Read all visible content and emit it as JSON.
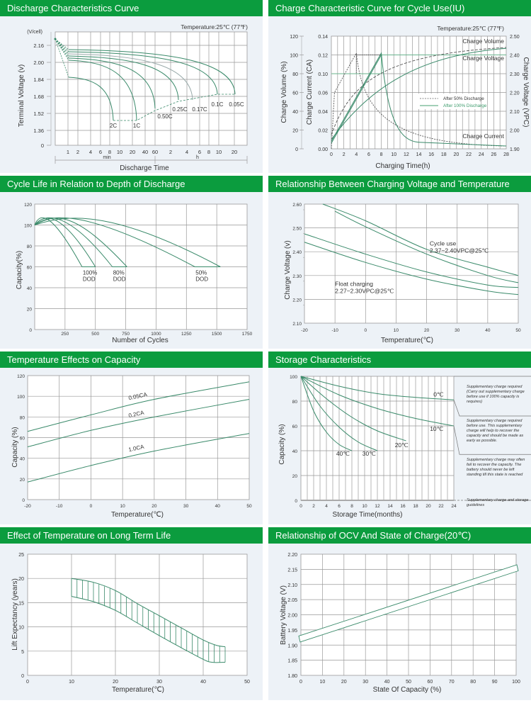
{
  "panels": [
    {
      "title": "Discharge Characteristics Curve"
    },
    {
      "title": "Charge Characteristic Curve for Cycle Use(IU)"
    },
    {
      "title": "Cycle Life in Relation to Depth of Discharge"
    },
    {
      "title": "Relationship Between Charging Voltage and Temperature"
    },
    {
      "title": "Temperature Effects on Capacity"
    },
    {
      "title": "Storage Characteristics"
    },
    {
      "title": "Effect of Temperature on Long Term Life"
    },
    {
      "title": "Relationship of OCV And State of Charge(20℃)"
    }
  ],
  "colors": {
    "header": "#0b9c3e",
    "panel_bg": "#edf2f7",
    "curve": "#3a8a6a",
    "grid": "#999999"
  },
  "chart_data": [
    {
      "type": "line",
      "title": "Discharge Characteristics Curve",
      "annotation": "Temperature:25℃ (77℉)",
      "ylabel": "Terminal  Voltage  (v)",
      "yunit": "(V/cell)",
      "xlabel": "Discharge  Time",
      "yticks": [
        "0",
        "1.36",
        "1.52",
        "1.68",
        "1.84",
        "2.00",
        "2.16"
      ],
      "xticks": [
        "1",
        "2",
        "4",
        "6",
        "8",
        "10",
        "20",
        "40",
        "60",
        "2",
        "4",
        "6",
        "8",
        "10",
        "20"
      ],
      "xgroups": [
        "min",
        "h"
      ],
      "series": [
        {
          "name": "2C",
          "end_time": "9 min",
          "end_voltage": 1.6
        },
        {
          "name": "1C",
          "end_time": "30 min",
          "end_voltage": 1.6
        },
        {
          "name": "0.50C",
          "end_time": "60 min",
          "end_voltage": 1.68
        },
        {
          "name": "0.25C",
          "end_time": "3 h",
          "end_voltage": 1.74
        },
        {
          "name": "0.17C",
          "end_time": "5 h",
          "end_voltage": 1.74
        },
        {
          "name": "0.1C",
          "end_time": "10 h",
          "end_voltage": 1.8
        },
        {
          "name": "0.05C",
          "end_time": "20 h",
          "end_voltage": 1.8
        }
      ]
    },
    {
      "type": "line",
      "title": "Charge Characteristic Curve for Cycle Use(IU)",
      "annotation": "Temperature:25℃ (77℉)",
      "xlabel": "Charging Time(h)",
      "ylabel_left1": "Charge  Volume (%)",
      "ylabel_left2": "Charge  Current (CA)",
      "ylabel_right": "Charge Voltage (VPC)",
      "xticks": [
        "0",
        "2",
        "4",
        "6",
        "8",
        "10",
        "12",
        "14",
        "16",
        "18",
        "20",
        "22",
        "24",
        "26",
        "28"
      ],
      "yticks_volume": [
        "0",
        "20",
        "40",
        "60",
        "80",
        "100",
        "120"
      ],
      "yticks_current": [
        "0.00",
        "0.02",
        "0.04",
        "0.06",
        "0.10",
        "0.12",
        "0.14"
      ],
      "yticks_voltage": [
        "1.90",
        "2.00",
        "2.10",
        "2.20",
        "2.30",
        "2.40",
        "2.50"
      ],
      "curve_labels": [
        "Charge Volume",
        "Charge Voltage",
        "Charge Current"
      ],
      "legend": [
        "After 50% Discharge",
        "After 100% Discharge"
      ],
      "legend_position": "center-right"
    },
    {
      "type": "line",
      "title": "Cycle Life in Relation to Depth of Discharge",
      "xlabel": "Number of Cycles",
      "ylabel": "Capacity(%)",
      "xticks": [
        "250",
        "500",
        "750",
        "1000",
        "1250",
        "1500",
        "1750"
      ],
      "yticks": [
        "0",
        "20",
        "40",
        "60",
        "80",
        "100",
        "120"
      ],
      "series": [
        {
          "name": "100% DOD",
          "label1": "100%",
          "label2": "DOD",
          "end_cycles": [
            390,
            500
          ]
        },
        {
          "name": "80% DOD",
          "label1": "80%",
          "label2": "DOD",
          "end_cycles": [
            640,
            760
          ]
        },
        {
          "name": "50% DOD",
          "label1": "50%",
          "label2": "DOD",
          "end_cycles": [
            1320,
            1530
          ]
        }
      ]
    },
    {
      "type": "line",
      "title": "Relationship Between Charging Voltage and Temperature",
      "xlabel": "Temperature(℃)",
      "ylabel": "Charge Voltage  (v)",
      "xticks": [
        "-20",
        "-10",
        "0",
        "10",
        "20",
        "30",
        "40",
        "50"
      ],
      "yticks": [
        "2.10",
        "2.20",
        "2.30",
        "2.40",
        "2.50",
        "2.60"
      ],
      "bands": [
        {
          "name": "Cycle use",
          "label1": "Cycle use",
          "label2": "2.37~2.40VPC@25℃",
          "upper": [
            [
              -14,
              2.6
            ],
            [
              0,
              2.53
            ],
            [
              20,
              2.41
            ],
            [
              40,
              2.335
            ],
            [
              50,
              2.3
            ]
          ],
          "lower": [
            [
              -10,
              2.57
            ],
            [
              0,
              2.505
            ],
            [
              20,
              2.39
            ],
            [
              40,
              2.3
            ],
            [
              50,
              2.27
            ]
          ]
        },
        {
          "name": "Float charging",
          "label1": "Float charging",
          "label2": "2.27~2.30VPC@25℃",
          "upper": [
            [
              -20,
              2.475
            ],
            [
              0,
              2.39
            ],
            [
              20,
              2.315
            ],
            [
              40,
              2.26
            ],
            [
              50,
              2.25
            ]
          ],
          "lower": [
            [
              -20,
              2.44
            ],
            [
              0,
              2.355
            ],
            [
              20,
              2.285
            ],
            [
              40,
              2.235
            ],
            [
              50,
              2.22
            ]
          ]
        }
      ]
    },
    {
      "type": "line",
      "title": "Temperature Effects on Capacity",
      "xlabel": "Temperature(℃)",
      "ylabel": "Capacity (%)",
      "xticks": [
        "-20",
        "-10",
        "0",
        "10",
        "20",
        "30",
        "40",
        "50"
      ],
      "yticks": [
        "0",
        "20",
        "40",
        "60",
        "80",
        "100",
        "120"
      ],
      "series": [
        {
          "name": "0.05CA",
          "points": [
            [
              -20,
              66
            ],
            [
              0,
              82
            ],
            [
              20,
              97
            ],
            [
              50,
              114
            ]
          ]
        },
        {
          "name": "0.2CA",
          "points": [
            [
              -20,
              51
            ],
            [
              0,
              67
            ],
            [
              20,
              80
            ],
            [
              50,
              97
            ]
          ]
        },
        {
          "name": "1.0CA",
          "points": [
            [
              -20,
              17
            ],
            [
              0,
              33
            ],
            [
              20,
              47
            ],
            [
              50,
              64
            ]
          ]
        }
      ]
    },
    {
      "type": "line",
      "title": "Storage Characteristics",
      "xlabel": "Storage  Time(months)",
      "ylabel": "Capacity  (%)",
      "xticks": [
        "0",
        "2",
        "4",
        "6",
        "8",
        "10",
        "12",
        "14",
        "16",
        "18",
        "20",
        "22",
        "24"
      ],
      "yticks": [
        "0",
        "20",
        "40",
        "60",
        "80",
        "100"
      ],
      "series": [
        {
          "name": "0℃",
          "points": [
            [
              0,
              100
            ],
            [
              6,
              92
            ],
            [
              12,
              86
            ],
            [
              18,
              83
            ],
            [
              24,
              81
            ]
          ]
        },
        {
          "name": "10℃",
          "points": [
            [
              0,
              100
            ],
            [
              6,
              85
            ],
            [
              12,
              74
            ],
            [
              18,
              66
            ],
            [
              24,
              60
            ]
          ]
        },
        {
          "name": "20℃",
          "points": [
            [
              0,
              100
            ],
            [
              4,
              82
            ],
            [
              8,
              67
            ],
            [
              12,
              56
            ],
            [
              16.5,
              48
            ]
          ]
        },
        {
          "name": "30℃",
          "points": [
            [
              0,
              100
            ],
            [
              3,
              76
            ],
            [
              6,
              59
            ],
            [
              9,
              47
            ],
            [
              12,
              40
            ]
          ]
        },
        {
          "name": "40℃",
          "points": [
            [
              0,
              100
            ],
            [
              2,
              72
            ],
            [
              4,
              55
            ],
            [
              6,
              45
            ],
            [
              8,
              40
            ]
          ]
        }
      ],
      "notes": [
        "Supplementary charge required (Carry out supplementary charge before use if 100% capacity is requires)",
        "Supplementary charge required before use. This supplementary charge will help to recover the capacity and should be made  as early as possible.",
        "Supplementary charge may often fail to recover the capacity. The battery should never be left standing till this state is reached",
        "Supplementary charge and storage guidelines"
      ]
    },
    {
      "type": "area",
      "title": "Effect of Temperature on Long Term Life",
      "xlabel": "Temperature(℃)",
      "ylabel": "Lift Expectancy  (years)",
      "xticks": [
        "0",
        "10",
        "20",
        "30",
        "40",
        "50"
      ],
      "yticks": [
        "0",
        "5",
        "10",
        "15",
        "20",
        "25"
      ],
      "upper": [
        [
          10,
          20
        ],
        [
          15,
          19.2
        ],
        [
          20,
          17.5
        ],
        [
          25,
          14.8
        ],
        [
          30,
          12.3
        ],
        [
          35,
          9.8
        ],
        [
          40,
          7.3
        ],
        [
          43,
          6.2
        ],
        [
          45,
          5.9
        ]
      ],
      "lower": [
        [
          10,
          16.3
        ],
        [
          15,
          15.2
        ],
        [
          20,
          13.4
        ],
        [
          25,
          10.8
        ],
        [
          30,
          8.2
        ],
        [
          35,
          5.7
        ],
        [
          40,
          3.3
        ],
        [
          42,
          2.7
        ],
        [
          45,
          2.7
        ]
      ]
    },
    {
      "type": "area",
      "title": "Relationship of OCV And State of Charge(20℃)",
      "xlabel": "State Of Capacity (%)",
      "ylabel": "Battery Voltage (V)",
      "xticks": [
        "0",
        "10",
        "20",
        "30",
        "40",
        "50",
        "60",
        "70",
        "80",
        "90",
        "100"
      ],
      "yticks": [
        "1.80",
        "1.85",
        "1.90",
        "1.95",
        "2.00",
        "2.05",
        "2.10",
        "2.15",
        "2.20"
      ],
      "upper": [
        [
          0,
          1.93
        ],
        [
          100,
          2.165
        ]
      ],
      "lower": [
        [
          0,
          1.91
        ],
        [
          100,
          2.145
        ]
      ]
    }
  ]
}
